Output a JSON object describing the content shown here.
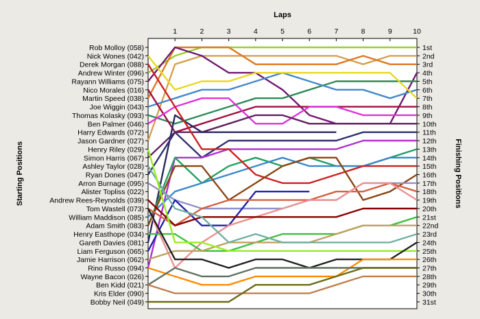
{
  "chart_data": {
    "type": "line",
    "title": "",
    "xlabel": "Laps",
    "ylabel_left": "Starting Positions",
    "ylabel_right": "Finishing Positions",
    "laps": [
      1,
      2,
      3,
      4,
      5,
      6,
      7,
      8,
      9,
      10
    ],
    "starting_labels": [
      "Rob Molloy (058)",
      "Nick Wones (042)",
      "Derek Morgan (088)",
      "Andrew Winter (096)",
      "Rayann Williams (075)",
      "Nico Morales (016)",
      "Martin Speed (038)",
      "Joe Wiggin (043)",
      "Thomas Kolasky (093)",
      "Ben Palmer (046)",
      "Harry Edwards (072)",
      "Jason Gardner (027)",
      "Henry Riley (029)",
      "Simon Harris (067)",
      "Ashley Taylor (028)",
      "Ryan Dones (047)",
      "Arron Burnage (095)",
      "Alister Topliss (022)",
      "Andrew Rees-Reynolds (039)",
      "Tom Wastell (073)",
      "William Maddison (085)",
      "Adam Smith (083)",
      "Henry Easthope (034)",
      "Gareth Davies (081)",
      "Liam Ferguson (065)",
      "Jamie Harrison (062)",
      "Rino Russo (094)",
      "Wayne Bacon (026)",
      "Ben Kidd (021)",
      "Kris Elder (090)",
      "Bobby Neil (049)"
    ],
    "finishing_labels": [
      "1st",
      "2nd",
      "3rd",
      "4th",
      "5th",
      "6th",
      "7th",
      "8th",
      "9th",
      "10th",
      "11th",
      "12th",
      "13th",
      "14th",
      "15th",
      "16th",
      "17th",
      "18th",
      "19th",
      "20th",
      "21st",
      "22nd",
      "23rd",
      "24th",
      "25th",
      "26th",
      "27th",
      "28th",
      "29th",
      "30th",
      "31st"
    ],
    "series": [
      {
        "color": "#9acd32",
        "positions": [
          4,
          2,
          1,
          1,
          1,
          1,
          1,
          1,
          1,
          1,
          1
        ]
      },
      {
        "color": "#d4a050",
        "positions": [
          12,
          3,
          2,
          2,
          2,
          2,
          2,
          2,
          3,
          2,
          2
        ]
      },
      {
        "color": "#e07820",
        "positions": [
          7,
          1,
          1,
          1,
          3,
          3,
          3,
          3,
          2,
          3,
          3
        ]
      },
      {
        "color": "#701870",
        "positions": [
          5,
          1,
          2,
          4,
          4,
          6,
          9,
          10,
          10,
          10,
          4
        ]
      },
      {
        "color": "#2e8b57",
        "positions": [
          9,
          10,
          9,
          8,
          7,
          7,
          6,
          5,
          5,
          5,
          5
        ]
      },
      {
        "color": "#4488cc",
        "positions": [
          8,
          7,
          6,
          6,
          5,
          4,
          5,
          6,
          6,
          7,
          6
        ]
      },
      {
        "color": "#e8d820",
        "positions": [
          2,
          6,
          5,
          5,
          4,
          4,
          4,
          4,
          4,
          4,
          7
        ]
      },
      {
        "color": "#a01040",
        "positions": [
          6,
          11,
          10,
          9,
          8,
          8,
          8,
          8,
          8,
          8,
          8
        ]
      },
      {
        "color": "#dd33dd",
        "positions": [
          10,
          8,
          7,
          7,
          10,
          10,
          8,
          8,
          9,
          9,
          9
        ]
      },
      {
        "color": "#602060",
        "positions": [
          14,
          11,
          11,
          10,
          9,
          9,
          10,
          10,
          10,
          10,
          10
        ]
      },
      {
        "color": "#282860",
        "positions": [
          24,
          9,
          11,
          11,
          11,
          11,
          11,
          11,
          null,
          null,
          null
        ]
      },
      {
        "color": "#303070",
        "positions": [
          16,
          11,
          14,
          12,
          12,
          12,
          12,
          12,
          11,
          11,
          11
        ]
      },
      {
        "color": "#b030d0",
        "positions": [
          27,
          14,
          14,
          13,
          13,
          13,
          13,
          13,
          12,
          12,
          12
        ]
      },
      {
        "color": "#22a060",
        "positions": [
          22,
          14,
          17,
          15,
          14,
          15,
          14,
          15,
          15,
          14,
          13
        ]
      },
      {
        "color": "#3a88cc",
        "positions": [
          21,
          18,
          17,
          16,
          15,
          14,
          15,
          15,
          15,
          14,
          14
        ]
      },
      {
        "color": "#cc2020",
        "positions": [
          3,
          8,
          13,
          13,
          16,
          17,
          17,
          16,
          15,
          15,
          15
        ]
      },
      {
        "color": "#8b4513",
        "positions": [
          22,
          15,
          15,
          19,
          17,
          15,
          14,
          14,
          19,
          18,
          16
        ]
      },
      {
        "color": "#9090cc",
        "positions": [
          17,
          19,
          20,
          20,
          20,
          20,
          19,
          19,
          17,
          17,
          17
        ]
      },
      {
        "color": "#2222aa",
        "positions": [
          25,
          19,
          22,
          22,
          18,
          18,
          18,
          null,
          null,
          null,
          null
        ]
      },
      {
        "color": "#d46040",
        "positions": [
          20,
          22,
          20,
          19,
          19,
          19,
          19,
          18,
          18,
          17,
          18
        ]
      },
      {
        "color": "#ee9090",
        "positions": [
          20,
          27,
          24,
          22,
          21,
          20,
          19,
          19,
          17,
          17,
          19
        ]
      },
      {
        "color": "#8b0000",
        "positions": [
          19,
          22,
          21,
          21,
          21,
          21,
          21,
          21,
          20,
          20,
          20
        ]
      },
      {
        "color": "#40c040",
        "positions": [
          23,
          23,
          25,
          25,
          24,
          23,
          23,
          23,
          22,
          22,
          21
        ]
      },
      {
        "color": "#c0a060",
        "positions": [
          26,
          25,
          25,
          24,
          24,
          24,
          24,
          23,
          22,
          22,
          22
        ]
      },
      {
        "color": "#70b0a0",
        "positions": [
          15,
          20,
          21,
          24,
          23,
          24,
          24,
          24,
          24,
          24,
          23
        ]
      },
      {
        "color": "#99ee22",
        "positions": [
          13,
          24,
          24,
          25,
          25,
          25,
          25,
          25,
          25,
          25,
          25
        ]
      },
      {
        "color": "#202020",
        "positions": [
          20,
          26,
          26,
          27,
          26,
          26,
          27,
          26,
          26,
          26,
          24
        ]
      },
      {
        "color": "#ff8c00",
        "positions": [
          27,
          28,
          29,
          29,
          28,
          28,
          28,
          28,
          26,
          26,
          26
        ]
      },
      {
        "color": "#607060",
        "positions": [
          29,
          27,
          28,
          28,
          27,
          27,
          27,
          27,
          27,
          27,
          27
        ]
      },
      {
        "color": "#c08050",
        "positions": [
          29,
          30,
          30,
          30,
          30,
          30,
          30,
          29,
          28,
          28,
          28
        ]
      },
      {
        "color": "#6b6b18",
        "positions": [
          31,
          31,
          31,
          31,
          29,
          29,
          29,
          28,
          27,
          27,
          27
        ]
      }
    ],
    "grid": false,
    "legend": "none"
  }
}
